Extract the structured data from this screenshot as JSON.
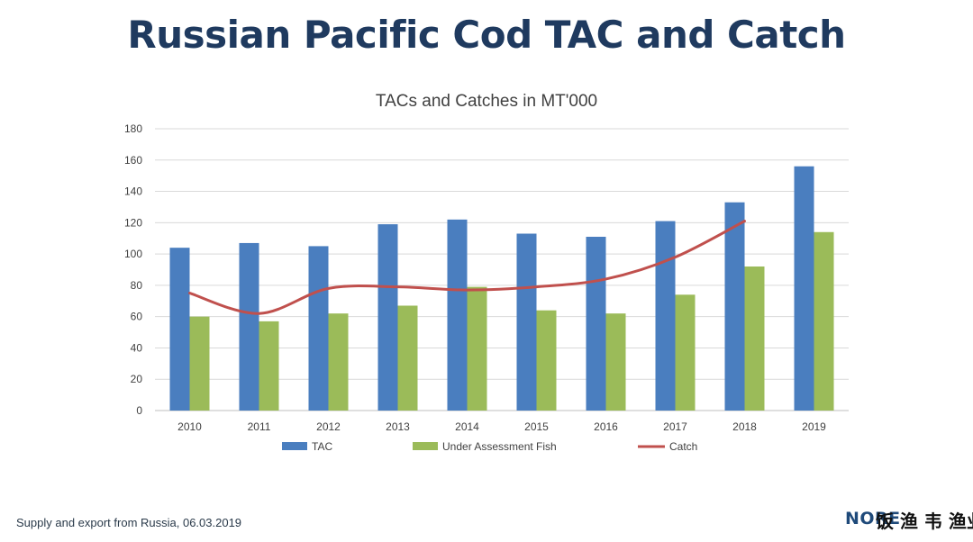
{
  "slide": {
    "title": "Russian Pacific Cod TAC and Catch",
    "footer_note": "Supply and export from Russia, 06.03.2019",
    "logo_text": "NORE",
    "logo_cjk_text": "饭 渔 韦 渔业"
  },
  "chart_data": {
    "type": "bar",
    "title": "TACs and Catches in MT'000",
    "categories": [
      "2010",
      "2011",
      "2012",
      "2013",
      "2014",
      "2015",
      "2016",
      "2017",
      "2018",
      "2019"
    ],
    "series": [
      {
        "name": "TAC",
        "type": "bar",
        "color": "#4a7ebf",
        "values": [
          104,
          107,
          105,
          119,
          122,
          113,
          111,
          121,
          133,
          156
        ]
      },
      {
        "name": "Under Assessment Fish",
        "type": "bar",
        "color": "#9bbb59",
        "values": [
          60,
          57,
          62,
          67,
          79,
          64,
          62,
          74,
          92,
          114
        ]
      },
      {
        "name": "Catch",
        "type": "line",
        "color": "#c0504d",
        "values": [
          75,
          62,
          78,
          79,
          77,
          79,
          84,
          98,
          121,
          null
        ]
      }
    ],
    "ylim": [
      0,
      180
    ],
    "yticks": [
      0,
      20,
      40,
      60,
      80,
      100,
      120,
      140,
      160,
      180
    ],
    "grid": true,
    "legend": "bottom",
    "xlabel": "",
    "ylabel": ""
  }
}
